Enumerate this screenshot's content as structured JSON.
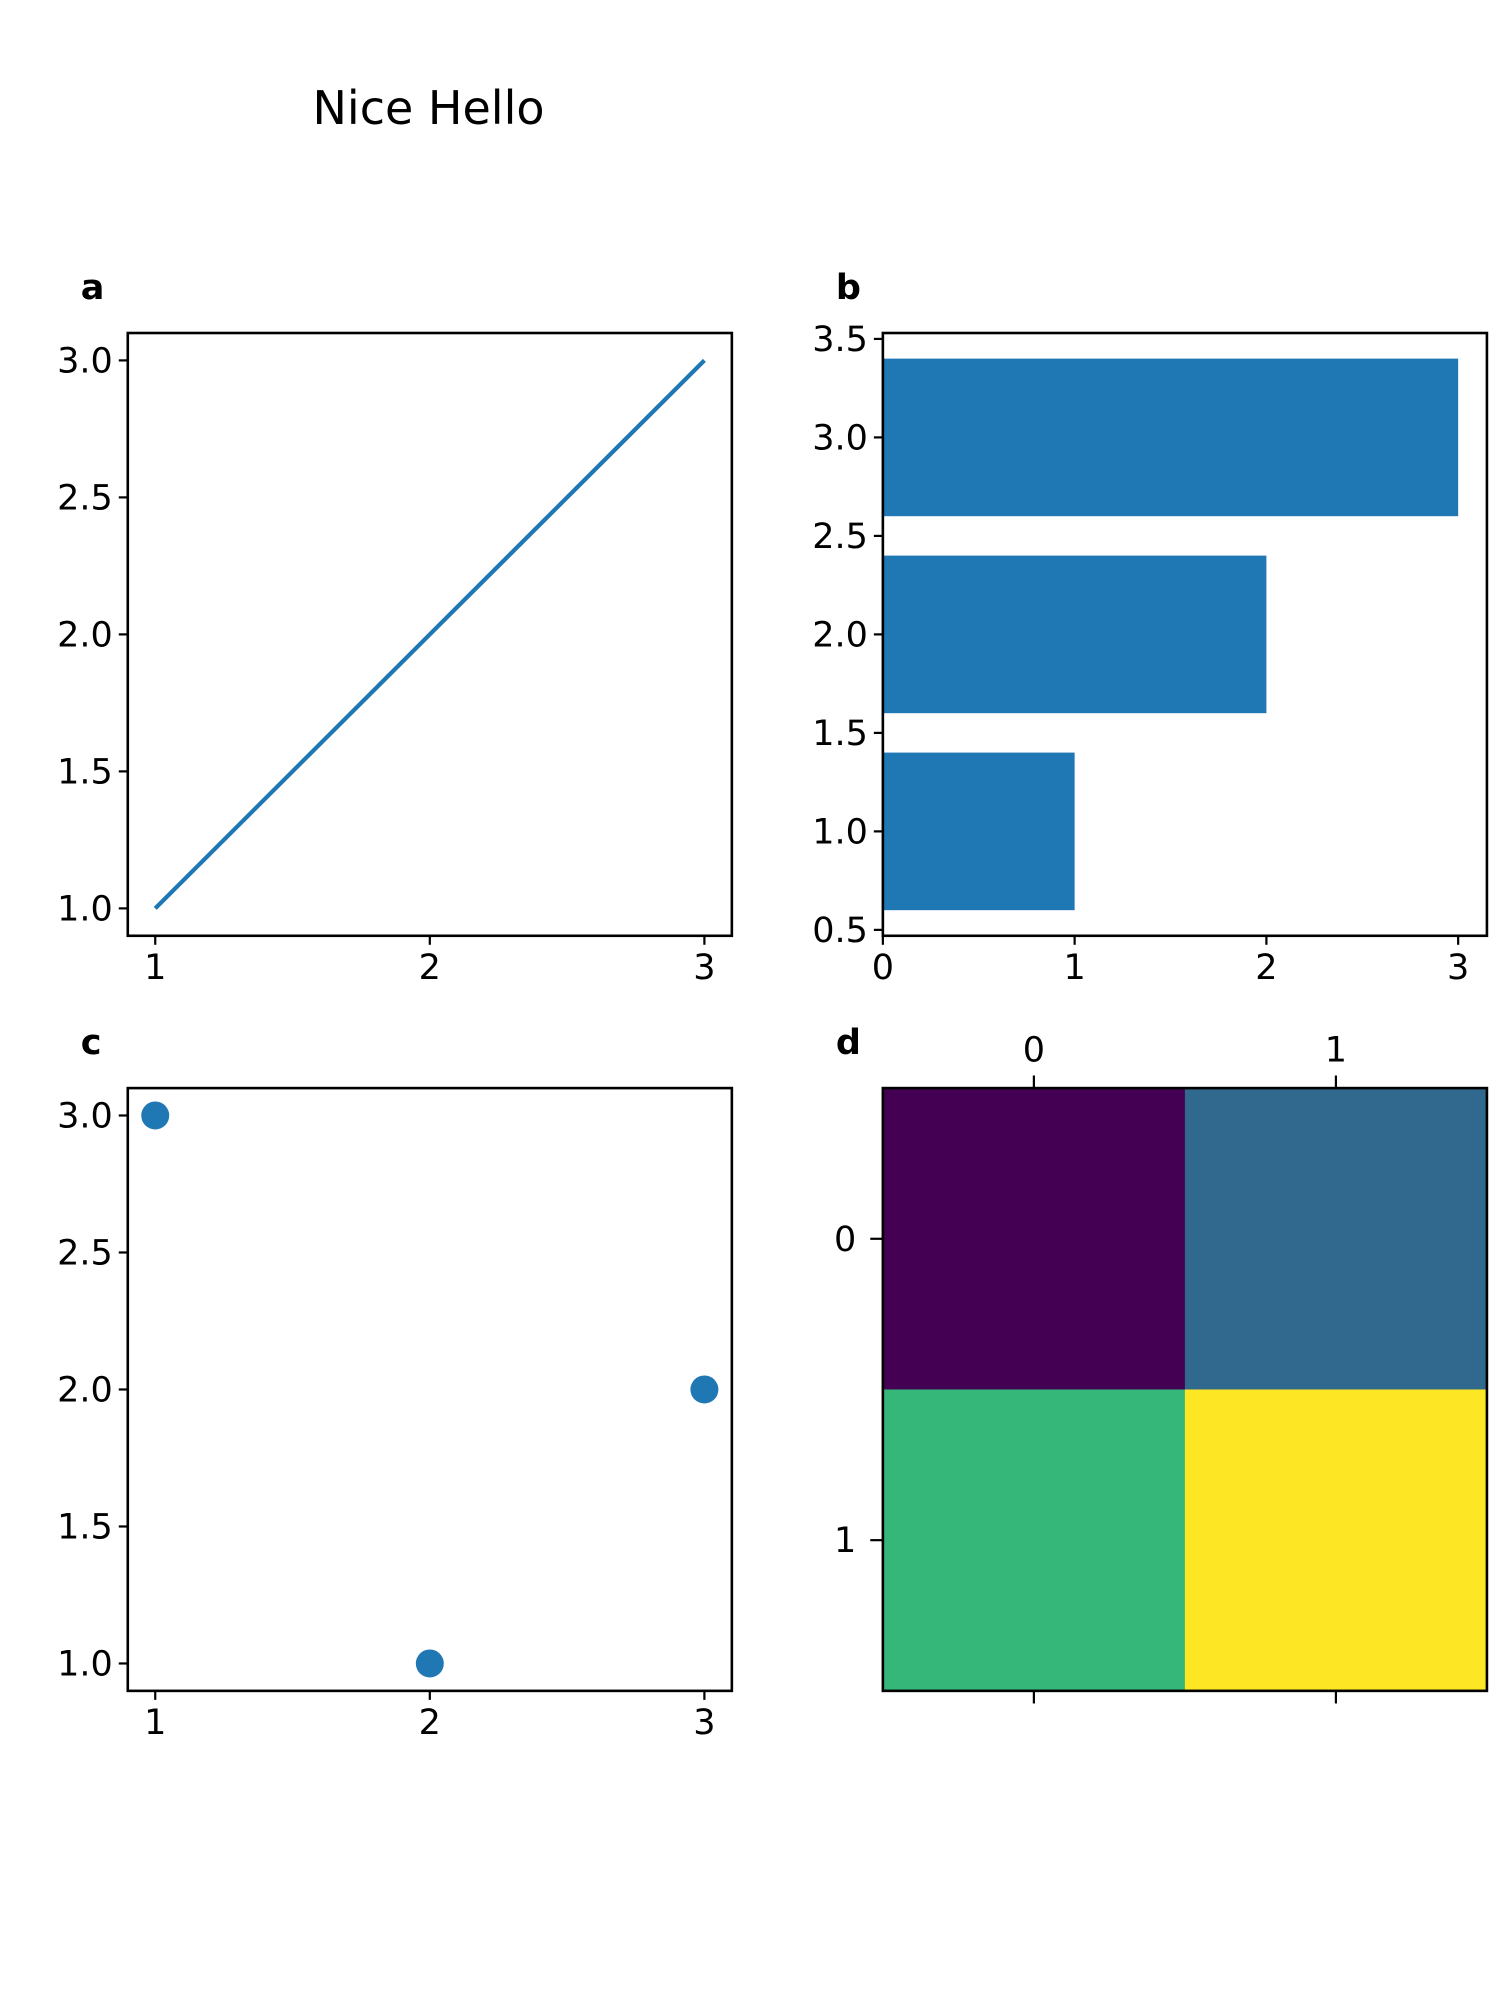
{
  "figure": {
    "title": "Nice Hello"
  },
  "chart_data": [
    {
      "panel_label": "a",
      "type": "line",
      "x": [
        1,
        2,
        3
      ],
      "y": [
        1,
        2,
        3
      ],
      "xlim": [
        0.9,
        3.1
      ],
      "ylim": [
        0.9,
        3.1
      ],
      "xticks": [
        "1",
        "2",
        "3"
      ],
      "yticks": [
        "1.0",
        "1.5",
        "2.0",
        "2.5",
        "3.0"
      ],
      "color": "#1f77b4",
      "grid": false
    },
    {
      "panel_label": "b",
      "type": "bar",
      "orientation": "horizontal",
      "categories": [
        1,
        2,
        3
      ],
      "values": [
        1,
        2,
        3
      ],
      "bar_height": 0.8,
      "xlim": [
        0,
        3.15
      ],
      "ylim": [
        0.47,
        3.53
      ],
      "xticks": [
        "0",
        "1",
        "2",
        "3"
      ],
      "yticks": [
        "0.5",
        "1.0",
        "1.5",
        "2.0",
        "2.5",
        "3.0",
        "3.5"
      ],
      "color": "#1f77b4",
      "grid": false
    },
    {
      "panel_label": "c",
      "type": "scatter",
      "x": [
        1,
        2,
        3
      ],
      "y": [
        3,
        1,
        2
      ],
      "xlim": [
        0.9,
        3.1
      ],
      "ylim": [
        0.9,
        3.1
      ],
      "xticks": [
        "1",
        "2",
        "3"
      ],
      "yticks": [
        "1.0",
        "1.5",
        "2.0",
        "2.5",
        "3.0"
      ],
      "color": "#1f77b4",
      "grid": false
    },
    {
      "panel_label": "d",
      "type": "heatmap",
      "z": [
        [
          1,
          2
        ],
        [
          3,
          4
        ]
      ],
      "colors": [
        [
          "#440154",
          "#31688e"
        ],
        [
          "#35b779",
          "#fde725"
        ]
      ],
      "colormap": "viridis",
      "xticks": [
        "0",
        "1"
      ],
      "yticks": [
        "0",
        "1"
      ],
      "xaxis_position": "top"
    }
  ]
}
